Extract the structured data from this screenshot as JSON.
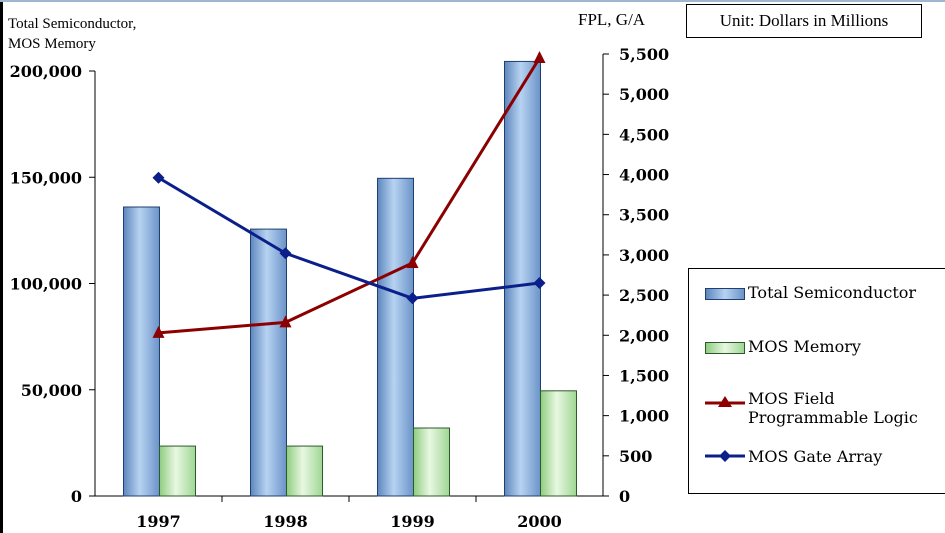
{
  "titles": {
    "left_axis": "Total Semiconductor,\nMOS Memory",
    "right_axis": "FPL, G/A",
    "unit": "Unit: Dollars in Millions"
  },
  "legend": {
    "items": [
      {
        "label": "Total Semiconductor",
        "kind": "bar",
        "color": "#7fa8d8"
      },
      {
        "label": "MOS Memory",
        "kind": "bar",
        "color": "#b4e2a8"
      },
      {
        "label": "MOS Field\nProgrammable Logic",
        "kind": "line",
        "color": "#8b0000",
        "marker": "triangle"
      },
      {
        "label": "MOS Gate Array",
        "kind": "line",
        "color": "#0b1f8a",
        "marker": "diamond"
      }
    ]
  },
  "chart_data": {
    "type": "bar",
    "categories": [
      "1997",
      "1998",
      "1999",
      "2000"
    ],
    "series": [
      {
        "name": "Total Semiconductor",
        "axis": "left",
        "type": "bar",
        "values": [
          136000,
          125600,
          149500,
          204500
        ],
        "color": "#7fa8d8"
      },
      {
        "name": "MOS Memory",
        "axis": "left",
        "type": "bar",
        "values": [
          23500,
          23500,
          32000,
          49500
        ],
        "color": "#b4e2a8"
      },
      {
        "name": "MOS Field Programmable Logic",
        "axis": "right",
        "type": "line",
        "values": [
          2030,
          2160,
          2900,
          5450
        ],
        "color": "#8b0000"
      },
      {
        "name": "MOS Gate Array",
        "axis": "right",
        "type": "line",
        "values": [
          3960,
          3020,
          2460,
          2650
        ],
        "color": "#0b1f8a"
      }
    ],
    "left_axis": {
      "ylim": [
        0,
        200000
      ],
      "ticks": [
        "0",
        "50,000",
        "100,000",
        "150,000",
        "200,000"
      ]
    },
    "right_axis": {
      "ylim": [
        0,
        5500
      ],
      "ticks": [
        "0",
        "500",
        "1,000",
        "1,500",
        "2,000",
        "2,500",
        "3,000",
        "3,500",
        "4,000",
        "4,500",
        "5,000",
        "5,500"
      ]
    },
    "grid": false,
    "legend_position": "right"
  }
}
